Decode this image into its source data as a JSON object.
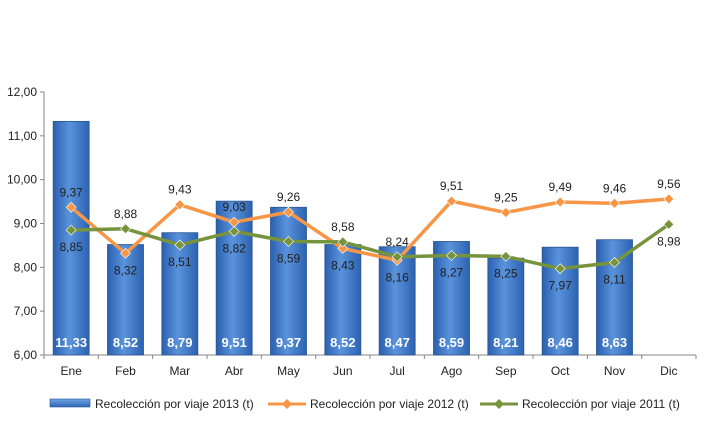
{
  "chart_data": {
    "type": "bar",
    "categories": [
      "Ene",
      "Feb",
      "Mar",
      "Abr",
      "May",
      "Jun",
      "Jul",
      "Ago",
      "Sep",
      "Oct",
      "Nov",
      "Dic"
    ],
    "ylim": [
      6,
      12
    ],
    "yticks": [
      "6,00",
      "7,00",
      "8,00",
      "9,00",
      "10,00",
      "11,00",
      "12,00"
    ],
    "grid": false,
    "legend_position": "bottom",
    "series": [
      {
        "name": "Recolección por viaje 2013 (t)",
        "kind": "bar",
        "color": "#3f79c9",
        "values": [
          11.33,
          8.52,
          8.79,
          9.51,
          9.37,
          8.52,
          8.47,
          8.59,
          8.21,
          8.46,
          8.63,
          null
        ],
        "labels": [
          "11,33",
          "8,52",
          "8,79",
          "9,51",
          "9,37",
          "8,52",
          "8,47",
          "8,59",
          "8,21",
          "8,46",
          "8,63",
          ""
        ]
      },
      {
        "name": "Recolección por viaje 2012 (t)",
        "kind": "line",
        "color": "#f79646",
        "values": [
          9.37,
          8.32,
          9.43,
          9.03,
          9.26,
          8.43,
          8.16,
          9.51,
          9.25,
          9.49,
          9.46,
          9.56
        ],
        "labels": [
          "9,37",
          "8,32",
          "9,43",
          "9,03",
          "9,26",
          "8,43",
          "8,16",
          "9,51",
          "9,25",
          "9,49",
          "9,46",
          "9,56"
        ]
      },
      {
        "name": "Recolección por viaje 2011 (t)",
        "kind": "line",
        "color": "#77933c",
        "values": [
          8.85,
          8.88,
          8.51,
          8.82,
          8.59,
          8.58,
          8.24,
          8.27,
          8.25,
          7.97,
          8.11,
          8.98
        ],
        "labels": [
          "8,85",
          "8,88",
          "8,51",
          "8,82",
          "8,59",
          "8,58",
          "8,24",
          "8,27",
          "8,25",
          "7,97",
          "8,11",
          "8,98"
        ]
      }
    ]
  }
}
